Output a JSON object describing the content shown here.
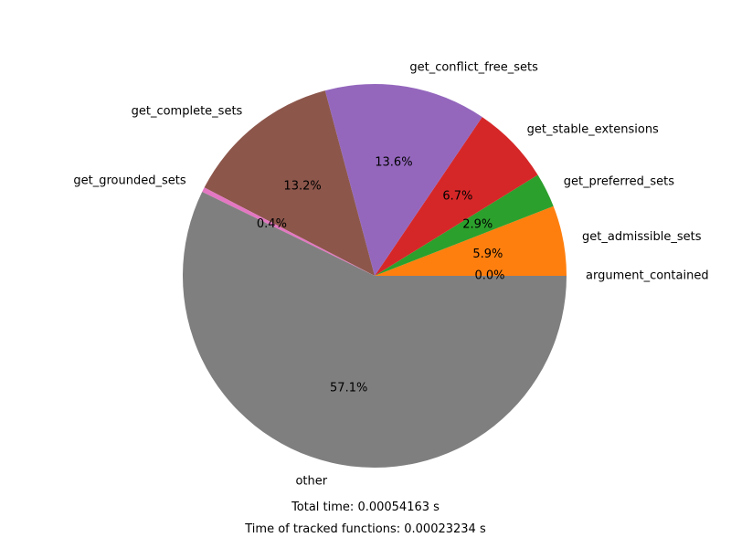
{
  "chart_data": {
    "type": "pie",
    "slices": [
      {
        "label": "argument_contained",
        "value": 0.0,
        "pct_label": "0.0%",
        "color": "#1f77b4"
      },
      {
        "label": "get_admissible_sets",
        "value": 5.9,
        "pct_label": "5.9%",
        "color": "#ff7f0e"
      },
      {
        "label": "get_preferred_sets",
        "value": 2.9,
        "pct_label": "2.9%",
        "color": "#2ca02c"
      },
      {
        "label": "get_stable_extensions",
        "value": 6.7,
        "pct_label": "6.7%",
        "color": "#d62728"
      },
      {
        "label": "get_conflict_free_sets",
        "value": 13.6,
        "pct_label": "13.6%",
        "color": "#9467bd"
      },
      {
        "label": "get_complete_sets",
        "value": 13.2,
        "pct_label": "13.2%",
        "color": "#8c564b"
      },
      {
        "label": "get_grounded_sets",
        "value": 0.4,
        "pct_label": "0.4%",
        "color": "#e377c2"
      },
      {
        "label": "other",
        "value": 57.1,
        "pct_label": "57.1%",
        "color": "#7f7f7f"
      }
    ],
    "start_angle_deg": 0,
    "direction": "counterclockwise"
  },
  "footer": {
    "total_time": "Total time: 0.00054163 s",
    "tracked_time": "Time of tracked functions: 0.00023234 s"
  }
}
